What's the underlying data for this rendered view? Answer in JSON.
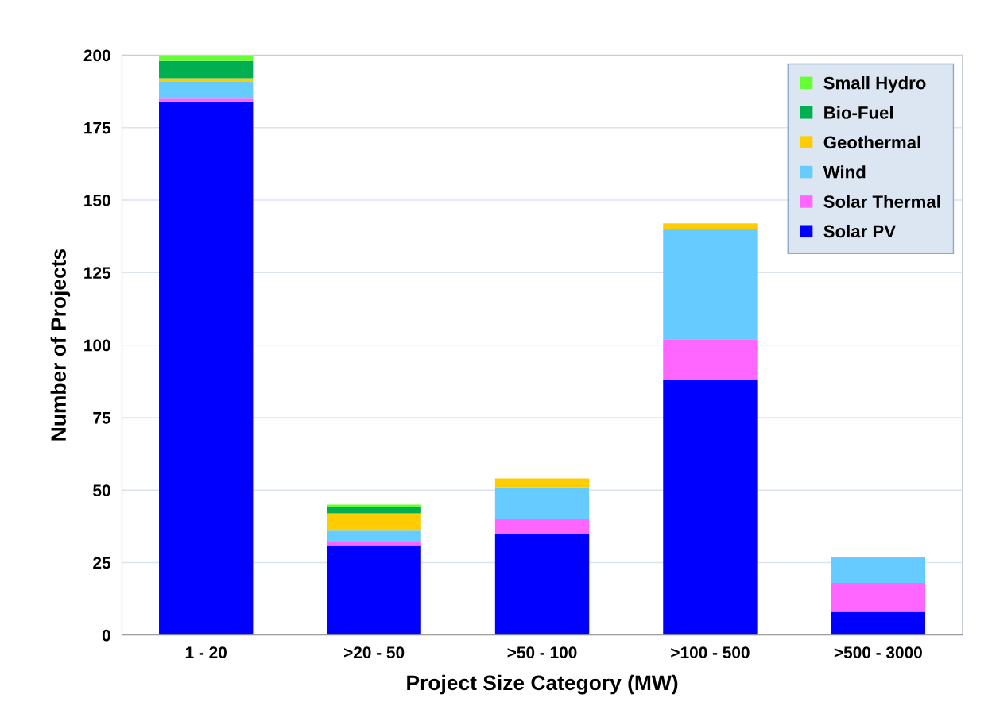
{
  "chart_data": {
    "type": "bar",
    "stacked": true,
    "xlabel": "Project Size Category (MW)",
    "ylabel": "Number of Projects",
    "categories": [
      "1 - 20",
      ">20 - 50",
      ">50 - 100",
      ">100 - 500",
      ">500 - 3000"
    ],
    "series": [
      {
        "name": "Solar PV",
        "color": "#0000ff",
        "values": [
          184,
          31,
          35,
          88,
          8
        ]
      },
      {
        "name": "Solar Thermal",
        "color": "#ff66ff",
        "values": [
          1,
          1,
          5,
          14,
          10
        ]
      },
      {
        "name": "Wind",
        "color": "#66ccff",
        "values": [
          6,
          4,
          11,
          38,
          9
        ]
      },
      {
        "name": "Geothermal",
        "color": "#ffcc00",
        "values": [
          1,
          6,
          3,
          2,
          0
        ]
      },
      {
        "name": "Bio-Fuel",
        "color": "#00b050",
        "values": [
          6,
          2,
          0,
          0,
          0
        ]
      },
      {
        "name": "Small Hydro",
        "color": "#66ff33",
        "values": [
          2,
          1,
          0,
          0,
          0
        ]
      }
    ],
    "ylim": [
      0,
      200
    ],
    "yticks": [
      0,
      25,
      50,
      75,
      100,
      125,
      150,
      175,
      200
    ],
    "grid": "y",
    "legend": "top right"
  }
}
